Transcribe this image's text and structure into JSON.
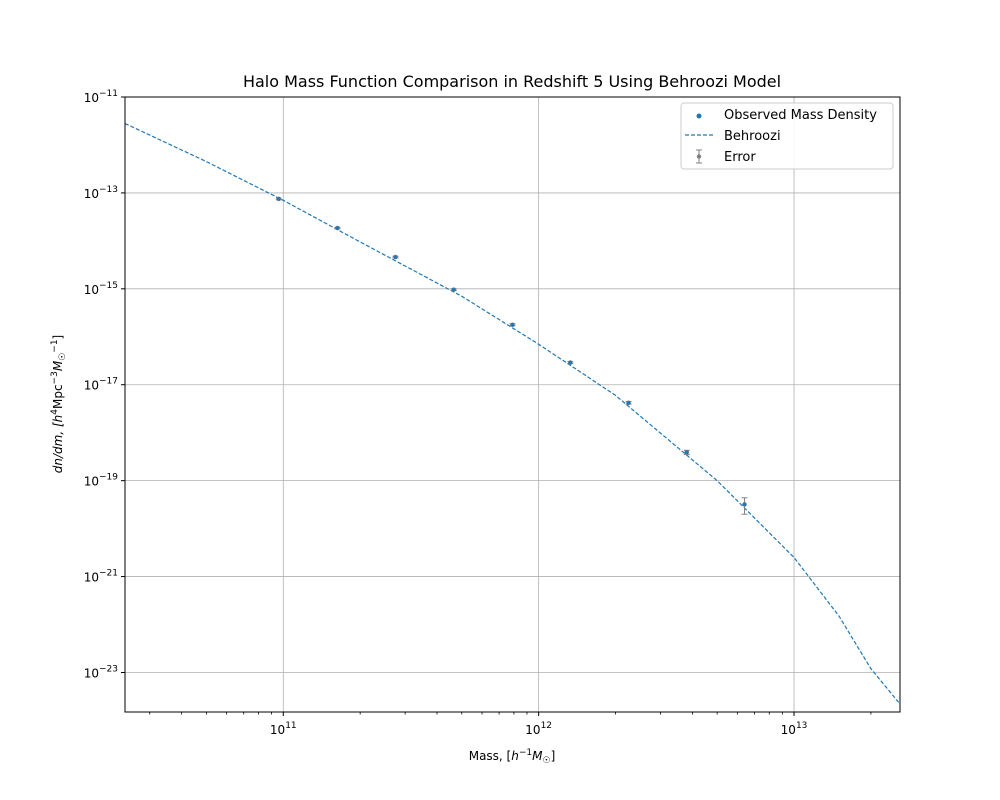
{
  "chart_data": {
    "type": "scatter",
    "title": "Halo Mass Function Comparison in Redshift 5 Using Behroozi Model",
    "xlabel": {
      "pre": "Mass, [",
      "base": "h",
      "sup": "−1",
      "sym": "M",
      "sub": "☉",
      "post": "]"
    },
    "ylabel": {
      "pre": "dn/dm, [",
      "h": "h",
      "hsup": "4",
      "mpc": "Mpc",
      "mpcsup": "−3",
      "msym": "M",
      "msub": "☉",
      "msup": "−1",
      "post": "]"
    },
    "xscale": "log",
    "yscale": "log",
    "xlim": [
      24000000000.0,
      26000000000000.0
    ],
    "ylim": [
      1.5e-24,
      1e-11
    ],
    "grid": true,
    "legend_position": "top-right",
    "x_ticks": [
      {
        "value": 100000000000.0,
        "base": "10",
        "exp": "11"
      },
      {
        "value": 1000000000000.0,
        "base": "10",
        "exp": "12"
      },
      {
        "value": 10000000000000.0,
        "base": "10",
        "exp": "13"
      }
    ],
    "y_ticks": [
      {
        "value": 1e-11,
        "base": "10",
        "exp": "−11"
      },
      {
        "value": 1e-13,
        "base": "10",
        "exp": "−13"
      },
      {
        "value": 1e-15,
        "base": "10",
        "exp": "−15"
      },
      {
        "value": 1e-17,
        "base": "10",
        "exp": "−17"
      },
      {
        "value": 1e-19,
        "base": "10",
        "exp": "−19"
      },
      {
        "value": 1e-21,
        "base": "10",
        "exp": "−21"
      },
      {
        "value": 1e-23,
        "base": "10",
        "exp": "−23"
      }
    ],
    "series": [
      {
        "name": "Observed Mass Density",
        "kind": "scatter",
        "color": "#1f77b4",
        "x": [
          96000000000.0,
          163000000000.0,
          275000000000.0,
          465000000000.0,
          790000000000.0,
          1330000000000.0,
          2250000000000.0,
          3800000000000.0,
          6400000000000.0
        ],
        "y": [
          7.5e-14,
          1.85e-14,
          4.6e-15,
          9.6e-16,
          1.78e-16,
          2.9e-17,
          4.2e-18,
          3.9e-19,
          3.2e-20
        ]
      },
      {
        "name": "Behroozi",
        "kind": "line",
        "style": "dashed",
        "color": "#1f77b4",
        "x": [
          24000000000.0,
          50000000000.0,
          100000000000.0,
          200000000000.0,
          500000000000.0,
          1000000000000.0,
          2000000000000.0,
          5000000000000.0,
          10000000000000.0,
          15000000000000.0,
          20000000000000.0,
          26000000000000.0
        ],
        "y": [
          2.8e-12,
          4.5e-13,
          7e-14,
          9.5e-15,
          7e-16,
          7e-17,
          6e-18,
          1e-19,
          2.5e-21,
          1.5e-22,
          1.2e-23,
          2.2e-24
        ]
      },
      {
        "name": "Error",
        "kind": "errorbar",
        "color": "#808080",
        "x": [
          96000000000.0,
          163000000000.0,
          275000000000.0,
          465000000000.0,
          790000000000.0,
          1330000000000.0,
          2250000000000.0,
          3800000000000.0,
          6400000000000.0
        ],
        "y": [
          7.5e-14,
          1.85e-14,
          4.6e-15,
          9.6e-16,
          1.78e-16,
          2.9e-17,
          4.2e-18,
          3.9e-19,
          3.2e-20
        ],
        "yerr": [
          3e-15,
          7e-16,
          1.8e-16,
          4e-17,
          8e-18,
          1.4e-18,
          2.5e-19,
          4e-20,
          1.2e-20
        ]
      }
    ]
  }
}
